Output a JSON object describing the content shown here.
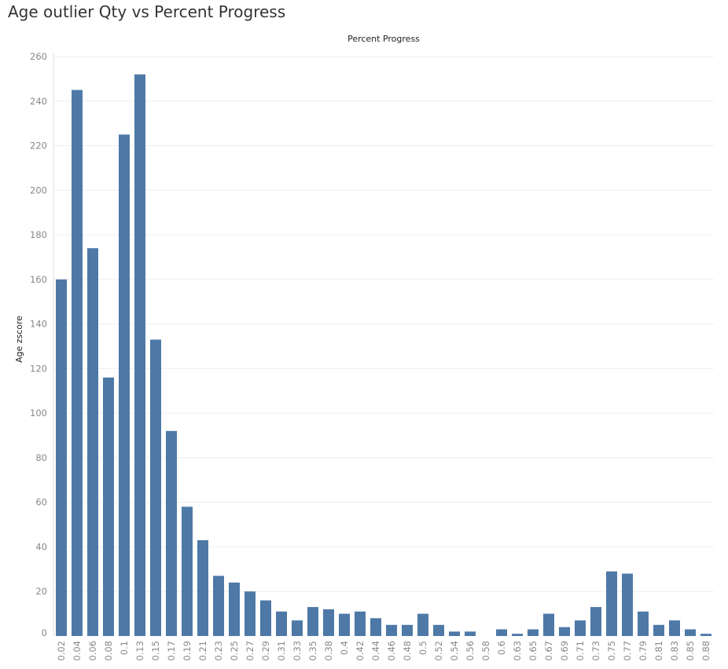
{
  "page": {
    "title": "Age outlier Qty vs Percent Progress"
  },
  "chart_data": {
    "type": "bar",
    "title": "Age outlier Qty vs Percent Progress",
    "xlabel": "Percent Progress",
    "ylabel": "Age zscore",
    "ylim": [
      0,
      260
    ],
    "yticks": [
      0,
      20,
      40,
      60,
      80,
      100,
      120,
      140,
      160,
      180,
      200,
      220,
      240,
      260
    ],
    "grid": true,
    "bar_color": "#4e79a7",
    "categories": [
      "0.02",
      "0.04",
      "0.06",
      "0.08",
      "0.1",
      "0.13",
      "0.15",
      "0.17",
      "0.19",
      "0.21",
      "0.23",
      "0.25",
      "0.27",
      "0.29",
      "0.31",
      "0.33",
      "0.35",
      "0.38",
      "0.4",
      "0.42",
      "0.44",
      "0.46",
      "0.48",
      "0.5",
      "0.52",
      "0.54",
      "0.56",
      "0.58",
      "0.6",
      "0.63",
      "0.65",
      "0.67",
      "0.69",
      "0.71",
      "0.73",
      "0.75",
      "0.77",
      "0.79",
      "0.81",
      "0.83",
      "0.85",
      "0.88"
    ],
    "values": [
      160,
      245,
      174,
      116,
      225,
      252,
      133,
      92,
      58,
      43,
      27,
      24,
      20,
      16,
      11,
      7,
      13,
      12,
      10,
      11,
      8,
      5,
      5,
      10,
      5,
      2,
      2,
      0,
      3,
      1,
      3,
      10,
      4,
      7,
      13,
      29,
      28,
      11,
      5,
      7,
      3,
      1
    ]
  }
}
